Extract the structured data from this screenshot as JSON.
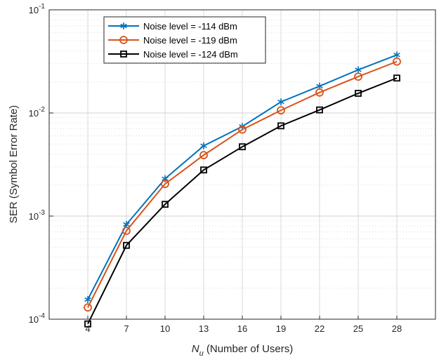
{
  "chart_data": {
    "type": "line",
    "xlabel_symbol": "N",
    "xlabel_subscript": "u",
    "xlabel_text": " (Number of Users)",
    "ylabel": "SER (Symbol Error Rate)",
    "x": [
      4,
      7,
      10,
      13,
      16,
      19,
      22,
      25,
      28
    ],
    "xlim": [
      1,
      31
    ],
    "ylim": [
      0.0001,
      0.1
    ],
    "yscale": "log",
    "grid": true,
    "minor_grid": true,
    "legend_position": "top-left",
    "series": [
      {
        "name": "Noise level = -114 dBm",
        "color": "#0072BD",
        "marker": "asterisk",
        "values": [
          0.000155,
          0.00083,
          0.0023,
          0.0048,
          0.0074,
          0.0128,
          0.0182,
          0.0262,
          0.0365
        ]
      },
      {
        "name": "Noise level = -119 dBm",
        "color": "#D95319",
        "marker": "circle",
        "values": [
          0.00013,
          0.00072,
          0.00205,
          0.0039,
          0.0069,
          0.0106,
          0.0158,
          0.0225,
          0.0315
        ]
      },
      {
        "name": "Noise level = -124 dBm",
        "color": "#000000",
        "marker": "square",
        "values": [
          9e-05,
          0.00052,
          0.0013,
          0.0028,
          0.0047,
          0.0075,
          0.0107,
          0.0155,
          0.0218
        ]
      }
    ]
  }
}
